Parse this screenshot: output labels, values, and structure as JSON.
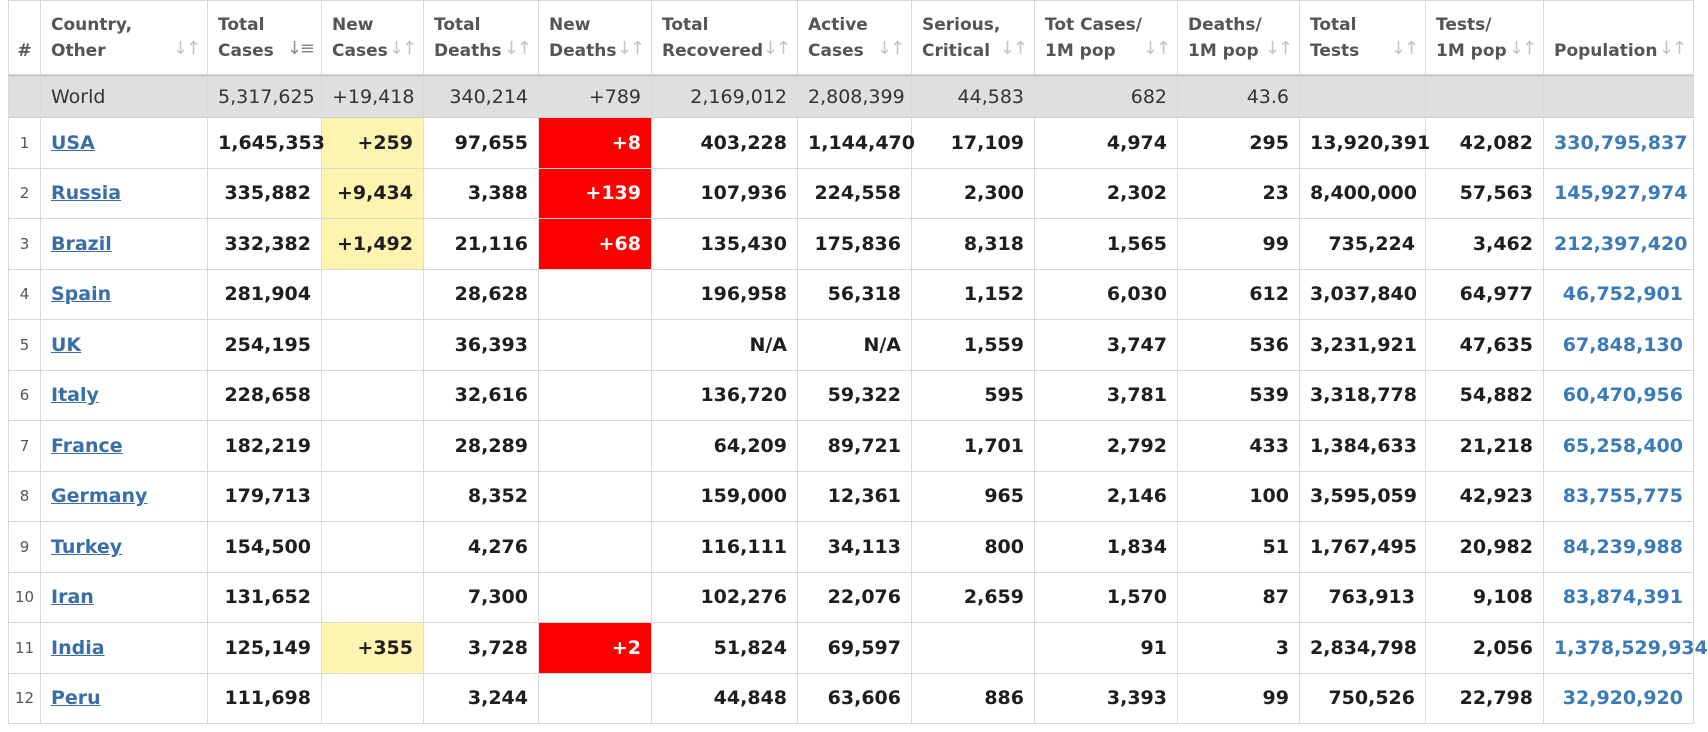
{
  "columns": [
    {
      "key": "rank",
      "label_l1": "#",
      "label_l2": ""
    },
    {
      "key": "country",
      "label_l1": "Country,",
      "label_l2": "Other"
    },
    {
      "key": "total_cases",
      "label_l1": "Total",
      "label_l2": "Cases"
    },
    {
      "key": "new_cases",
      "label_l1": "New",
      "label_l2": "Cases"
    },
    {
      "key": "total_deaths",
      "label_l1": "Total",
      "label_l2": "Deaths"
    },
    {
      "key": "new_deaths",
      "label_l1": "New",
      "label_l2": "Deaths"
    },
    {
      "key": "total_recovered",
      "label_l1": "Total",
      "label_l2": "Recovered"
    },
    {
      "key": "active_cases",
      "label_l1": "Active",
      "label_l2": "Cases"
    },
    {
      "key": "serious_critical",
      "label_l1": "Serious,",
      "label_l2": "Critical"
    },
    {
      "key": "cases_per_1m",
      "label_l1": "Tot Cases/",
      "label_l2": "1M pop"
    },
    {
      "key": "deaths_per_1m",
      "label_l1": "Deaths/",
      "label_l2": "1M pop"
    },
    {
      "key": "total_tests",
      "label_l1": "Total",
      "label_l2": "Tests"
    },
    {
      "key": "tests_per_1m",
      "label_l1": "Tests/",
      "label_l2": "1M pop"
    },
    {
      "key": "population",
      "label_l1": "Population",
      "label_l2": ""
    }
  ],
  "sort_icon": "sort-arrows-icon",
  "active_sort_column": "total_cases",
  "colors": {
    "new_cases_highlight": "#fff3b0",
    "new_deaths_highlight": "#ff0000",
    "link": "#3a6ea8",
    "world_row_bg": "#dfdfdf"
  },
  "world": {
    "rank": "",
    "country": "World",
    "total_cases": "5,317,625",
    "new_cases": "+19,418",
    "total_deaths": "340,214",
    "new_deaths": "+789",
    "total_recovered": "2,169,012",
    "active_cases": "2,808,399",
    "serious_critical": "44,583",
    "cases_per_1m": "682",
    "deaths_per_1m": "43.6",
    "total_tests": "",
    "tests_per_1m": "",
    "population": ""
  },
  "rows": [
    {
      "rank": "1",
      "country": "USA",
      "total_cases": "1,645,353",
      "new_cases": "+259",
      "total_deaths": "97,655",
      "new_deaths": "+8",
      "total_recovered": "403,228",
      "active_cases": "1,144,470",
      "serious_critical": "17,109",
      "cases_per_1m": "4,974",
      "deaths_per_1m": "295",
      "total_tests": "13,920,391",
      "tests_per_1m": "42,082",
      "population": "330,795,837"
    },
    {
      "rank": "2",
      "country": "Russia",
      "total_cases": "335,882",
      "new_cases": "+9,434",
      "total_deaths": "3,388",
      "new_deaths": "+139",
      "total_recovered": "107,936",
      "active_cases": "224,558",
      "serious_critical": "2,300",
      "cases_per_1m": "2,302",
      "deaths_per_1m": "23",
      "total_tests": "8,400,000",
      "tests_per_1m": "57,563",
      "population": "145,927,974"
    },
    {
      "rank": "3",
      "country": "Brazil",
      "total_cases": "332,382",
      "new_cases": "+1,492",
      "total_deaths": "21,116",
      "new_deaths": "+68",
      "total_recovered": "135,430",
      "active_cases": "175,836",
      "serious_critical": "8,318",
      "cases_per_1m": "1,565",
      "deaths_per_1m": "99",
      "total_tests": "735,224",
      "tests_per_1m": "3,462",
      "population": "212,397,420"
    },
    {
      "rank": "4",
      "country": "Spain",
      "total_cases": "281,904",
      "new_cases": "",
      "total_deaths": "28,628",
      "new_deaths": "",
      "total_recovered": "196,958",
      "active_cases": "56,318",
      "serious_critical": "1,152",
      "cases_per_1m": "6,030",
      "deaths_per_1m": "612",
      "total_tests": "3,037,840",
      "tests_per_1m": "64,977",
      "population": "46,752,901"
    },
    {
      "rank": "5",
      "country": "UK",
      "total_cases": "254,195",
      "new_cases": "",
      "total_deaths": "36,393",
      "new_deaths": "",
      "total_recovered": "N/A",
      "active_cases": "N/A",
      "serious_critical": "1,559",
      "cases_per_1m": "3,747",
      "deaths_per_1m": "536",
      "total_tests": "3,231,921",
      "tests_per_1m": "47,635",
      "population": "67,848,130"
    },
    {
      "rank": "6",
      "country": "Italy",
      "total_cases": "228,658",
      "new_cases": "",
      "total_deaths": "32,616",
      "new_deaths": "",
      "total_recovered": "136,720",
      "active_cases": "59,322",
      "serious_critical": "595",
      "cases_per_1m": "3,781",
      "deaths_per_1m": "539",
      "total_tests": "3,318,778",
      "tests_per_1m": "54,882",
      "population": "60,470,956"
    },
    {
      "rank": "7",
      "country": "France",
      "total_cases": "182,219",
      "new_cases": "",
      "total_deaths": "28,289",
      "new_deaths": "",
      "total_recovered": "64,209",
      "active_cases": "89,721",
      "serious_critical": "1,701",
      "cases_per_1m": "2,792",
      "deaths_per_1m": "433",
      "total_tests": "1,384,633",
      "tests_per_1m": "21,218",
      "population": "65,258,400"
    },
    {
      "rank": "8",
      "country": "Germany",
      "total_cases": "179,713",
      "new_cases": "",
      "total_deaths": "8,352",
      "new_deaths": "",
      "total_recovered": "159,000",
      "active_cases": "12,361",
      "serious_critical": "965",
      "cases_per_1m": "2,146",
      "deaths_per_1m": "100",
      "total_tests": "3,595,059",
      "tests_per_1m": "42,923",
      "population": "83,755,775"
    },
    {
      "rank": "9",
      "country": "Turkey",
      "total_cases": "154,500",
      "new_cases": "",
      "total_deaths": "4,276",
      "new_deaths": "",
      "total_recovered": "116,111",
      "active_cases": "34,113",
      "serious_critical": "800",
      "cases_per_1m": "1,834",
      "deaths_per_1m": "51",
      "total_tests": "1,767,495",
      "tests_per_1m": "20,982",
      "population": "84,239,988"
    },
    {
      "rank": "10",
      "country": "Iran",
      "total_cases": "131,652",
      "new_cases": "",
      "total_deaths": "7,300",
      "new_deaths": "",
      "total_recovered": "102,276",
      "active_cases": "22,076",
      "serious_critical": "2,659",
      "cases_per_1m": "1,570",
      "deaths_per_1m": "87",
      "total_tests": "763,913",
      "tests_per_1m": "9,108",
      "population": "83,874,391"
    },
    {
      "rank": "11",
      "country": "India",
      "total_cases": "125,149",
      "new_cases": "+355",
      "total_deaths": "3,728",
      "new_deaths": "+2",
      "total_recovered": "51,824",
      "active_cases": "69,597",
      "serious_critical": "",
      "cases_per_1m": "91",
      "deaths_per_1m": "3",
      "total_tests": "2,834,798",
      "tests_per_1m": "2,056",
      "population": "1,378,529,934"
    },
    {
      "rank": "12",
      "country": "Peru",
      "total_cases": "111,698",
      "new_cases": "",
      "total_deaths": "3,244",
      "new_deaths": "",
      "total_recovered": "44,848",
      "active_cases": "63,606",
      "serious_critical": "886",
      "cases_per_1m": "3,393",
      "deaths_per_1m": "99",
      "total_tests": "750,526",
      "tests_per_1m": "22,798",
      "population": "32,920,920"
    }
  ]
}
